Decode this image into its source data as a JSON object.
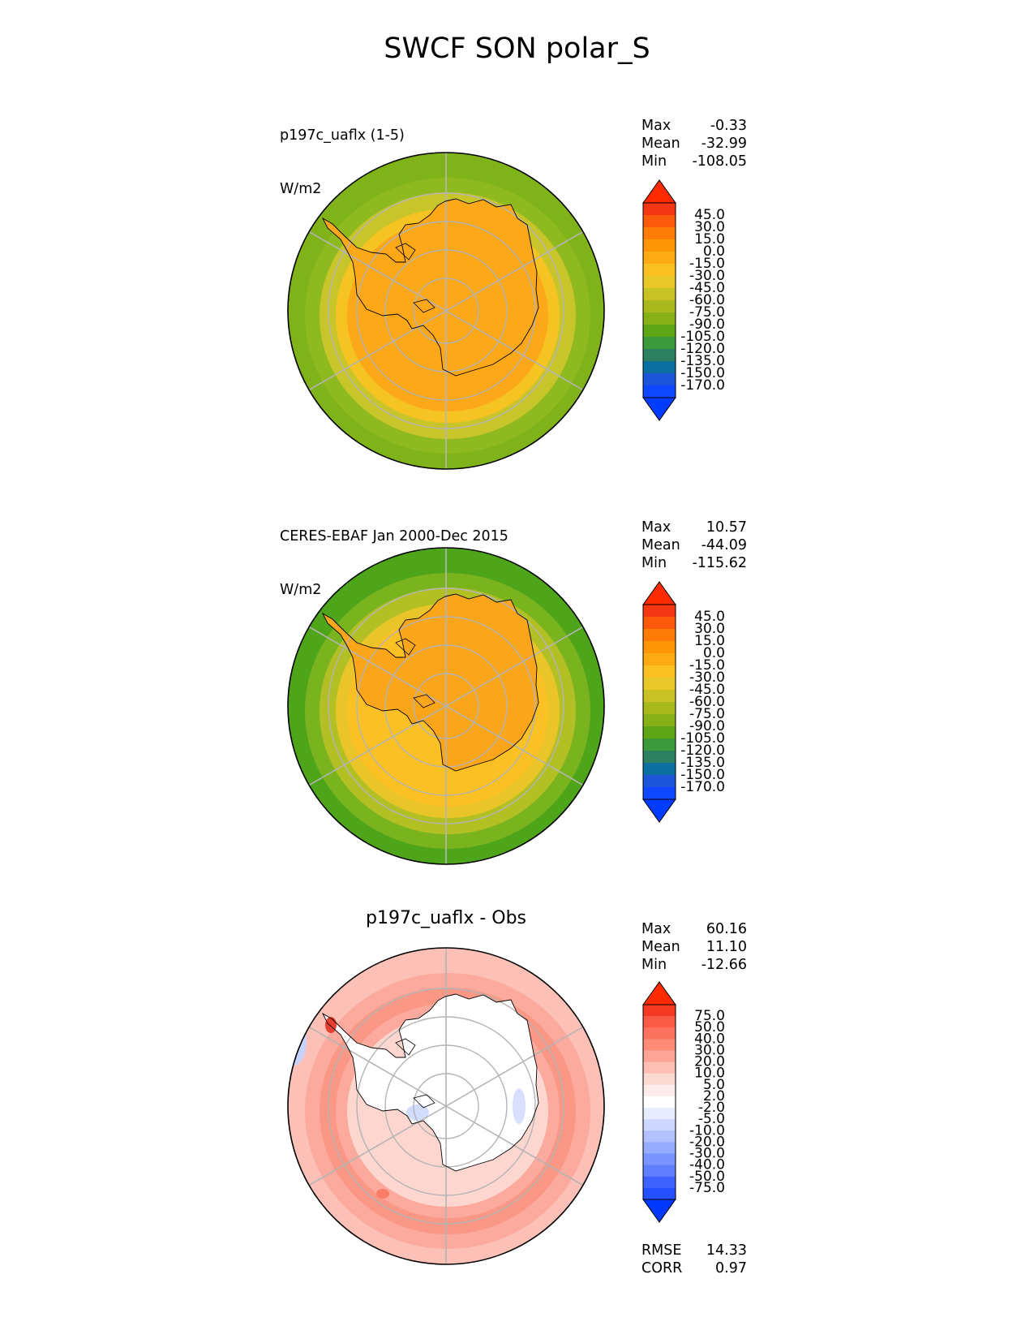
{
  "title": "SWCF SON polar_S",
  "colors": {
    "outline": "#000000",
    "grid": "#b4b4b4",
    "coast": "#000000"
  },
  "panels": [
    {
      "id": "test",
      "label_lines": [
        "p197c_uaflx (1-5)",
        "W/m2"
      ],
      "title": "",
      "stats": [
        {
          "label": "Max",
          "value": "-0.33"
        },
        {
          "label": "Mean",
          "value": "-32.99"
        },
        {
          "label": "Min",
          "value": "-108.05"
        }
      ],
      "colorbar": {
        "labels": [
          "45.0",
          "30.0",
          "15.0",
          "0.0",
          "-15.0",
          "-30.0",
          "-45.0",
          "-60.0",
          "-75.0",
          "-90.0",
          "-105.0",
          "-120.0",
          "-135.0",
          "-150.0",
          "-170.0"
        ],
        "colors": [
          "#f53614",
          "#fa5a0a",
          "#fc7c07",
          "#fd9606",
          "#fdab13",
          "#fbc021",
          "#e8c829",
          "#c9c224",
          "#a7b91c",
          "#86b016",
          "#5ea616",
          "#3d9a3a",
          "#2d8060",
          "#0d6fa0",
          "#1c55d8",
          "#0f46ff"
        ],
        "top_color": "#ff2a00",
        "bottom_color": "#003cff"
      },
      "map": {
        "outer": "#7fb319",
        "rings": [
          "#8fba1f",
          "#c8c52a",
          "#f5c322",
          "#fca818"
        ],
        "interior": "#fca818"
      }
    },
    {
      "id": "ref",
      "label_lines": [
        "CERES-EBAF Jan 2000-Dec 2015",
        "W/m2"
      ],
      "title": "",
      "stats": [
        {
          "label": "Max",
          "value": "10.57"
        },
        {
          "label": "Mean",
          "value": "-44.09"
        },
        {
          "label": "Min",
          "value": "-115.62"
        }
      ],
      "colorbar": {
        "labels": [
          "45.0",
          "30.0",
          "15.0",
          "0.0",
          "-15.0",
          "-30.0",
          "-45.0",
          "-60.0",
          "-75.0",
          "-90.0",
          "-105.0",
          "-120.0",
          "-135.0",
          "-150.0",
          "-170.0"
        ],
        "colors": [
          "#f53614",
          "#fa5a0a",
          "#fc7c07",
          "#fd9606",
          "#fdab13",
          "#fbc021",
          "#e8c829",
          "#c9c224",
          "#a7b91c",
          "#86b016",
          "#5ea616",
          "#3d9a3a",
          "#2d8060",
          "#0d6fa0",
          "#1c55d8",
          "#0f46ff"
        ],
        "top_color": "#ff2a00",
        "bottom_color": "#003cff"
      },
      "map": {
        "outer": "#4fa51a",
        "rings": [
          "#79b31d",
          "#b3c024",
          "#e9c52a",
          "#fbc124"
        ],
        "interior": "#fba51a"
      }
    },
    {
      "id": "diff",
      "label_lines": [],
      "title": "p197c_uaflx - Obs",
      "stats": [
        {
          "label": "Max",
          "value": "60.16"
        },
        {
          "label": "Mean",
          "value": "11.10"
        },
        {
          "label": "Min",
          "value": "-12.66"
        }
      ],
      "colorbar": {
        "labels": [
          "75.0",
          "50.0",
          "40.0",
          "30.0",
          "20.0",
          "10.0",
          "5.0",
          "2.0",
          "-2.0",
          "-5.0",
          "-10.0",
          "-20.0",
          "-30.0",
          "-40.0",
          "-50.0",
          "-75.0"
        ],
        "colors": [
          "#f53a24",
          "#f95a45",
          "#fb735e",
          "#fc8b77",
          "#fca596",
          "#fdbfb4",
          "#fdd9d3",
          "#feecea",
          "#ffffff",
          "#e7ecff",
          "#cdd7ff",
          "#b1c1ff",
          "#96acff",
          "#7a95ff",
          "#5f7fff",
          "#3d62ff",
          "#2450ff"
        ],
        "top_color": "#ff2a00",
        "bottom_color": "#0038ff"
      },
      "map": {
        "outer": "#fcc0b6",
        "rings": [
          "#fbaa9d",
          "#fa9785",
          "#fbaa9d",
          "#fdd6cf"
        ],
        "interior": "#ffffff"
      }
    }
  ],
  "metrics": [
    {
      "label": "RMSE",
      "value": "14.33"
    },
    {
      "label": "CORR",
      "value": "0.97"
    }
  ]
}
